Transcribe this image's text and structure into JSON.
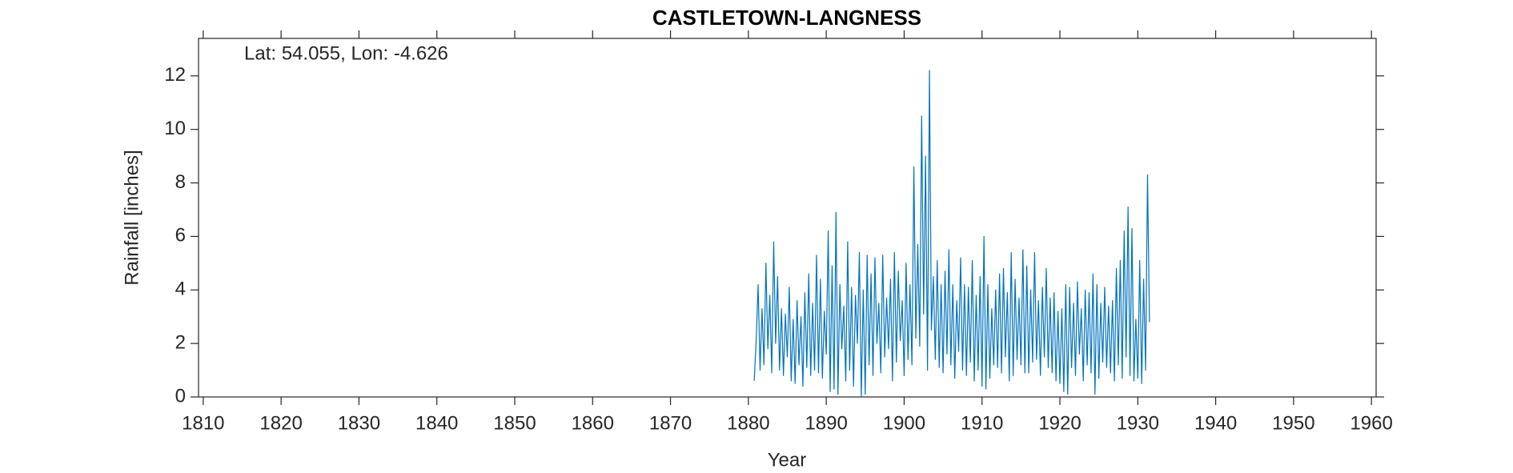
{
  "chart_data": {
    "type": "line",
    "title": "CASTLETOWN-LANGNESS",
    "annotation": "Lat: 54.055, Lon: -4.626",
    "x_label": "Year",
    "y_label": "Rainfall [inches]",
    "xlim": [
      1809.4,
      1960.6
    ],
    "ylim": [
      0,
      13.4
    ],
    "xticks": [
      1810,
      1820,
      1830,
      1840,
      1850,
      1860,
      1870,
      1880,
      1890,
      1900,
      1910,
      1920,
      1930,
      1940,
      1950,
      1960
    ],
    "yticks": [
      0,
      2,
      4,
      6,
      8,
      10,
      12
    ],
    "series": [
      {
        "name": "Rainfall",
        "color": "#0072bd",
        "x": [
          1880.75,
          1881,
          1881.25,
          1881.5,
          1881.75,
          1882,
          1882.25,
          1882.5,
          1882.75,
          1883,
          1883.25,
          1883.5,
          1883.75,
          1884,
          1884.25,
          1884.5,
          1884.75,
          1885,
          1885.25,
          1885.5,
          1885.75,
          1886,
          1886.25,
          1886.5,
          1886.75,
          1887,
          1887.25,
          1887.5,
          1887.75,
          1888,
          1888.25,
          1888.5,
          1888.75,
          1889,
          1889.25,
          1889.5,
          1889.75,
          1890,
          1890.25,
          1890.5,
          1890.75,
          1891,
          1891.25,
          1891.5,
          1891.75,
          1892,
          1892.25,
          1892.5,
          1892.75,
          1893,
          1893.25,
          1893.5,
          1893.75,
          1894,
          1894.25,
          1894.5,
          1894.75,
          1895,
          1895.25,
          1895.5,
          1895.75,
          1896,
          1896.25,
          1896.5,
          1896.75,
          1897,
          1897.25,
          1897.5,
          1897.75,
          1898,
          1898.25,
          1898.5,
          1898.75,
          1899,
          1899.25,
          1899.5,
          1899.75,
          1900,
          1900.25,
          1900.5,
          1900.75,
          1901,
          1901.25,
          1901.5,
          1901.75,
          1902,
          1902.25,
          1902.5,
          1902.75,
          1903,
          1903.25,
          1903.5,
          1903.75,
          1904,
          1904.25,
          1904.5,
          1904.75,
          1905,
          1905.25,
          1905.5,
          1905.75,
          1906,
          1906.25,
          1906.5,
          1906.75,
          1907,
          1907.25,
          1907.5,
          1907.75,
          1908,
          1908.25,
          1908.5,
          1908.75,
          1909,
          1909.25,
          1909.5,
          1909.75,
          1910,
          1910.25,
          1910.5,
          1910.75,
          1911,
          1911.25,
          1911.5,
          1911.75,
          1912,
          1912.25,
          1912.5,
          1912.75,
          1913,
          1913.25,
          1913.5,
          1913.75,
          1914,
          1914.25,
          1914.5,
          1914.75,
          1915,
          1915.25,
          1915.5,
          1915.75,
          1916,
          1916.25,
          1916.5,
          1916.75,
          1917,
          1917.25,
          1917.5,
          1917.75,
          1918,
          1918.25,
          1918.5,
          1918.75,
          1919,
          1919.25,
          1919.5,
          1919.75,
          1920,
          1920.25,
          1920.5,
          1920.75,
          1921,
          1921.25,
          1921.5,
          1921.75,
          1922,
          1922.25,
          1922.5,
          1922.75,
          1923,
          1923.25,
          1923.5,
          1923.75,
          1924,
          1924.25,
          1924.5,
          1924.75,
          1925,
          1925.25,
          1925.5,
          1925.75,
          1926,
          1926.25,
          1926.5,
          1926.75,
          1927,
          1927.25,
          1927.5,
          1927.75,
          1928,
          1928.25,
          1928.5,
          1928.75,
          1929,
          1929.25,
          1929.5,
          1929.75,
          1930,
          1930.25,
          1930.5,
          1930.75,
          1931,
          1931.25,
          1931.5
        ],
        "values": [
          0.6,
          2.1,
          4.2,
          1.0,
          3.3,
          1.2,
          5.0,
          1.8,
          3.8,
          0.9,
          5.8,
          2.0,
          4.5,
          1.0,
          3.3,
          0.8,
          3.1,
          1.5,
          4.1,
          0.6,
          2.9,
          0.5,
          3.6,
          1.2,
          3.0,
          0.4,
          3.9,
          1.1,
          4.6,
          0.8,
          3.5,
          1.0,
          5.3,
          0.9,
          4.4,
          0.7,
          3.2,
          1.6,
          6.2,
          0.2,
          4.9,
          0.3,
          6.9,
          0.1,
          4.2,
          1.8,
          3.4,
          0.6,
          5.8,
          1.0,
          4.1,
          0.4,
          3.8,
          2.0,
          5.4,
          0.0,
          4.0,
          0.1,
          5.3,
          1.2,
          4.6,
          0.8,
          5.2,
          2.0,
          3.5,
          0.9,
          5.3,
          1.5,
          3.7,
          1.8,
          4.4,
          0.6,
          5.4,
          1.3,
          4.7,
          2.1,
          3.6,
          0.8,
          5.0,
          1.4,
          4.2,
          1.2,
          8.6,
          2.2,
          5.7,
          1.9,
          10.5,
          3.1,
          9.0,
          1.0,
          12.2,
          2.5,
          4.5,
          1.4,
          5.1,
          1.1,
          4.2,
          0.9,
          4.7,
          1.6,
          5.5,
          1.2,
          4.2,
          0.7,
          3.6,
          1.7,
          5.2,
          1.0,
          4.2,
          0.8,
          4.1,
          1.3,
          5.1,
          0.6,
          3.8,
          1.0,
          4.5,
          0.4,
          6.0,
          0.3,
          4.2,
          0.7,
          3.3,
          1.2,
          4.0,
          1.1,
          4.6,
          0.9,
          4.8,
          1.5,
          3.9,
          0.6,
          5.4,
          0.8,
          4.4,
          1.4,
          3.7,
          1.2,
          5.5,
          0.9,
          4.9,
          0.9,
          4.0,
          1.3,
          5.4,
          1.4,
          3.6,
          0.8,
          4.1,
          1.5,
          4.8,
          1.1,
          3.7,
          0.9,
          3.9,
          0.6,
          3.2,
          0.5,
          3.3,
          0.2,
          4.2,
          0.1,
          4.1,
          1.1,
          3.5,
          0.8,
          4.3,
          1.6,
          3.3,
          0.6,
          4.0,
          1.2,
          3.9,
          0.9,
          4.6,
          0.1,
          4.2,
          0.7,
          3.5,
          1.3,
          4.1,
          1.1,
          3.4,
          0.9,
          3.6,
          0.6,
          4.8,
          1.2,
          5.1,
          0.7,
          6.2,
          1.5,
          7.1,
          0.8,
          6.3,
          0.6,
          2.9,
          0.7,
          5.1,
          0.5,
          4.4,
          1.0,
          8.3,
          2.8
        ]
      }
    ]
  }
}
